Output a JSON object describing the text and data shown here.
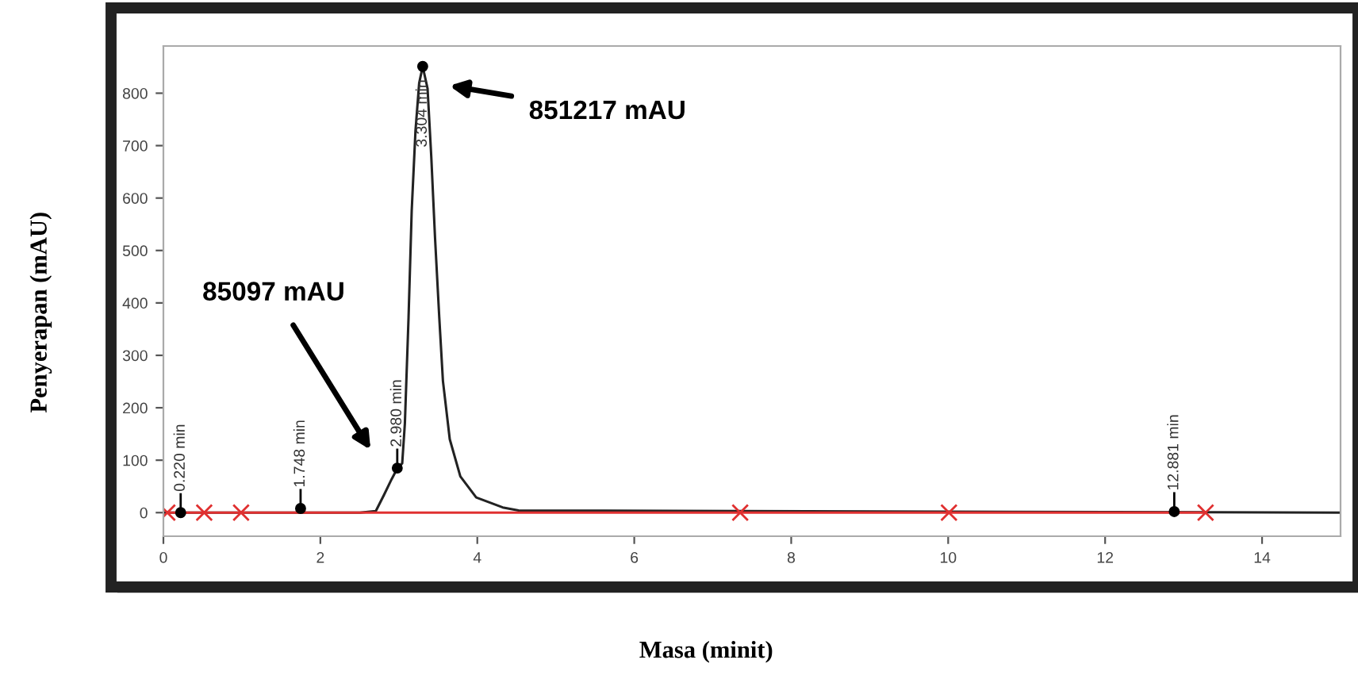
{
  "chart_data": {
    "type": "line",
    "xlabel": "Masa (minit)",
    "ylabel": "Penyerapan (mAU)",
    "xlim": [
      0,
      15
    ],
    "ylim": [
      -45,
      890
    ],
    "xticks": [
      0,
      2,
      4,
      6,
      8,
      10,
      12,
      14
    ],
    "yticks": [
      0,
      100,
      200,
      300,
      400,
      500,
      600,
      700,
      800
    ],
    "grid": false,
    "legend": false,
    "line_style": "solid",
    "series": [
      {
        "color": "#222222",
        "marker": "none",
        "x": [
          0,
          2.505,
          2.707,
          2.808,
          2.909,
          2.983,
          3.043,
          3.077,
          3.124,
          3.164,
          3.212,
          3.259,
          3.304,
          3.366,
          3.414,
          3.461,
          3.515,
          3.562,
          3.649,
          3.784,
          3.986,
          4.323,
          4.525,
          15
        ],
        "values": [
          0,
          0,
          3,
          33,
          64,
          85,
          94,
          170,
          373,
          576,
          728,
          819,
          851,
          809,
          677,
          525,
          373,
          251,
          140,
          69,
          29,
          10,
          4,
          0
        ]
      },
      {
        "type": "line",
        "color": "#e03030",
        "marker": "cross",
        "x": [
          0.05,
          0.52,
          0.99,
          7.35,
          10.01,
          13.28
        ],
        "values": [
          0,
          0,
          0,
          0,
          0,
          0
        ]
      },
      {
        "type": "scatter",
        "color": "#000000",
        "marker": "circle",
        "x": [
          0.22,
          1.748,
          2.98,
          3.304,
          12.881
        ],
        "values": [
          0,
          8,
          85,
          851,
          2
        ]
      }
    ],
    "annotations": [
      {
        "text": "0.220 min",
        "x": 0.22,
        "y": 0
      },
      {
        "text": "1.748 min",
        "x": 1.748,
        "y": 8
      },
      {
        "text": "2.980 min",
        "x": 2.98,
        "y": 85
      },
      {
        "text": "3.304 min",
        "x": 3.304,
        "y": 851
      },
      {
        "text": "12.881 min",
        "x": 12.881,
        "y": 2
      },
      "85097 mAU",
      "851217 mAU"
    ]
  }
}
